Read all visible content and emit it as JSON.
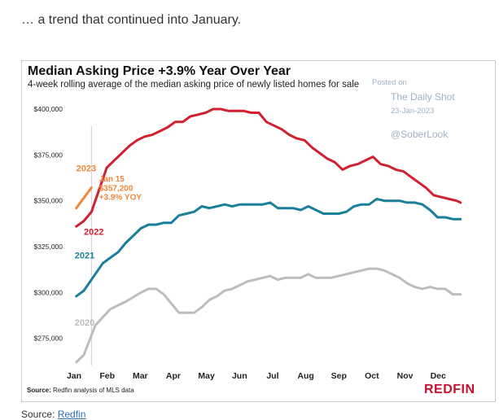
{
  "intro_text": "… a trend that continued into January.",
  "footer": {
    "source_label": "Source:",
    "source_link": "Redfin"
  },
  "watermark": {
    "posted_on": "Posted on",
    "publication": "The Daily Shot",
    "date": "23-Jan-2023",
    "handle": "@SoberLook"
  },
  "brand": {
    "logo_text": "REDFIN"
  },
  "chart_data": {
    "type": "line",
    "title": "Median Asking Price +3.9% Year Over Year",
    "subtitle": "4-week rolling average of the median asking price of newly listed homes for sale",
    "source_label": "Source:",
    "source_text": "Redfin analysis of MLS data",
    "xlabel": "",
    "ylabel": "",
    "x_ticks": [
      "Jan",
      "Feb",
      "Mar",
      "Apr",
      "May",
      "Jun",
      "Jul",
      "Aug",
      "Sep",
      "Oct",
      "Nov",
      "Dec"
    ],
    "x_range": [
      0,
      52
    ],
    "ylim": [
      262000,
      404000
    ],
    "y_ticks": [
      {
        "value": 275000,
        "label": "$275,000"
      },
      {
        "value": 300000,
        "label": "$300,000"
      },
      {
        "value": 325000,
        "label": "$325,000"
      },
      {
        "value": 350000,
        "label": "$350,000"
      },
      {
        "value": 375000,
        "label": "$375,000"
      },
      {
        "value": 400000,
        "label": "$400,000"
      }
    ],
    "grid": false,
    "legend": "inline",
    "series": [
      {
        "name": "2020",
        "color": "#bdbdbd",
        "points": [
          [
            0.5,
            262000
          ],
          [
            1.5,
            266000
          ],
          [
            3,
            282000
          ],
          [
            5,
            291000
          ],
          [
            7,
            295000
          ],
          [
            9,
            300000
          ],
          [
            10,
            302000
          ],
          [
            11,
            302000
          ],
          [
            12,
            299000
          ],
          [
            13,
            294000
          ],
          [
            14,
            289000
          ],
          [
            15,
            289000
          ],
          [
            16,
            289000
          ],
          [
            17,
            292000
          ],
          [
            18,
            296000
          ],
          [
            19,
            298000
          ],
          [
            20,
            301000
          ],
          [
            21,
            302000
          ],
          [
            22,
            304000
          ],
          [
            23,
            306000
          ],
          [
            24,
            307000
          ],
          [
            25,
            308000
          ],
          [
            26,
            309000
          ],
          [
            27,
            307000
          ],
          [
            28,
            308000
          ],
          [
            29,
            308000
          ],
          [
            30,
            308000
          ],
          [
            31,
            310000
          ],
          [
            32,
            308000
          ],
          [
            33,
            308000
          ],
          [
            34,
            308000
          ],
          [
            35,
            309000
          ],
          [
            36,
            310000
          ],
          [
            37,
            311000
          ],
          [
            38,
            312000
          ],
          [
            39,
            313000
          ],
          [
            40,
            313000
          ],
          [
            41,
            312000
          ],
          [
            42,
            310000
          ],
          [
            43,
            308000
          ],
          [
            44,
            305000
          ],
          [
            45,
            303000
          ],
          [
            46,
            302000
          ],
          [
            47,
            303000
          ],
          [
            48,
            302000
          ],
          [
            49,
            302000
          ],
          [
            50,
            299000
          ],
          [
            51,
            299000
          ]
        ]
      },
      {
        "name": "2021",
        "color": "#1a7f99",
        "points": [
          [
            0.5,
            298000
          ],
          [
            1.5,
            301000
          ],
          [
            3,
            310000
          ],
          [
            4,
            316000
          ],
          [
            5,
            319000
          ],
          [
            6,
            322000
          ],
          [
            7,
            327000
          ],
          [
            8,
            331000
          ],
          [
            9,
            335000
          ],
          [
            10,
            337000
          ],
          [
            11,
            337000
          ],
          [
            12,
            338000
          ],
          [
            13,
            338000
          ],
          [
            14,
            342000
          ],
          [
            15,
            343000
          ],
          [
            16,
            344000
          ],
          [
            17,
            347000
          ],
          [
            18,
            346000
          ],
          [
            19,
            347000
          ],
          [
            20,
            348000
          ],
          [
            21,
            347000
          ],
          [
            22,
            348000
          ],
          [
            23,
            348000
          ],
          [
            24,
            348000
          ],
          [
            25,
            348000
          ],
          [
            26,
            349000
          ],
          [
            27,
            346000
          ],
          [
            28,
            346000
          ],
          [
            29,
            346000
          ],
          [
            30,
            345000
          ],
          [
            31,
            347000
          ],
          [
            32,
            345000
          ],
          [
            33,
            343000
          ],
          [
            34,
            343000
          ],
          [
            35,
            343000
          ],
          [
            36,
            344000
          ],
          [
            37,
            347000
          ],
          [
            38,
            348000
          ],
          [
            39,
            348000
          ],
          [
            40,
            351000
          ],
          [
            41,
            350000
          ],
          [
            42,
            350000
          ],
          [
            43,
            350000
          ],
          [
            44,
            349000
          ],
          [
            45,
            349000
          ],
          [
            46,
            348000
          ],
          [
            47,
            345000
          ],
          [
            48,
            341000
          ],
          [
            49,
            341000
          ],
          [
            50,
            340000
          ],
          [
            51,
            340000
          ]
        ]
      },
      {
        "name": "2022",
        "color": "#d1202f",
        "points": [
          [
            0.5,
            336000
          ],
          [
            1.5,
            339000
          ],
          [
            2.5,
            344000
          ],
          [
            3.5,
            356000
          ],
          [
            4.5,
            368000
          ],
          [
            5.5,
            372000
          ],
          [
            6.5,
            376000
          ],
          [
            7.5,
            380000
          ],
          [
            8.5,
            383000
          ],
          [
            9.5,
            385000
          ],
          [
            10.5,
            386000
          ],
          [
            11.5,
            388000
          ],
          [
            12.5,
            390000
          ],
          [
            13.5,
            393000
          ],
          [
            14.5,
            393000
          ],
          [
            15.5,
            396000
          ],
          [
            16.5,
            397000
          ],
          [
            17.5,
            398000
          ],
          [
            18.5,
            400000
          ],
          [
            19.5,
            400000
          ],
          [
            20.5,
            399000
          ],
          [
            21.5,
            399000
          ],
          [
            22.5,
            399000
          ],
          [
            23.5,
            398000
          ],
          [
            24.5,
            398000
          ],
          [
            25.5,
            393000
          ],
          [
            26.5,
            391000
          ],
          [
            27.5,
            389000
          ],
          [
            28.5,
            386000
          ],
          [
            29.5,
            384000
          ],
          [
            30.5,
            383000
          ],
          [
            31.5,
            379000
          ],
          [
            32.5,
            376000
          ],
          [
            33.5,
            373000
          ],
          [
            34.5,
            371000
          ],
          [
            35.5,
            367000
          ],
          [
            36.5,
            369000
          ],
          [
            37.5,
            370000
          ],
          [
            38.5,
            372000
          ],
          [
            39.5,
            374000
          ],
          [
            40.5,
            370000
          ],
          [
            41.5,
            369000
          ],
          [
            42.5,
            367000
          ],
          [
            43.5,
            366000
          ],
          [
            44.5,
            363000
          ],
          [
            45.5,
            360000
          ],
          [
            46.5,
            357000
          ],
          [
            47.5,
            353000
          ],
          [
            48.5,
            352000
          ],
          [
            49.5,
            351000
          ],
          [
            50.5,
            350000
          ],
          [
            51,
            349000
          ]
        ]
      },
      {
        "name": "2023",
        "color": "#f0873a",
        "points": [
          [
            0.5,
            346000
          ],
          [
            2.5,
            357200
          ]
        ]
      }
    ],
    "series_labels": [
      {
        "series": "2020",
        "text": "2020",
        "x": 0.3,
        "y": 282000
      },
      {
        "series": "2021",
        "text": "2021",
        "x": 0.3,
        "y": 318500
      },
      {
        "series": "2022",
        "text": "2022",
        "x": 1.5,
        "y": 331500
      },
      {
        "series": "2023",
        "text": "2023",
        "x": 0.5,
        "y": 366000
      }
    ],
    "annotation": {
      "lines": [
        "Jan 15",
        "$357,200",
        "+3.9% YOY"
      ],
      "color": "#f0873a",
      "x": 3.5,
      "y": 360500,
      "line_height_value": 5000
    },
    "reference_line": {
      "x": 2.5,
      "color": "#cfcfcf"
    }
  }
}
